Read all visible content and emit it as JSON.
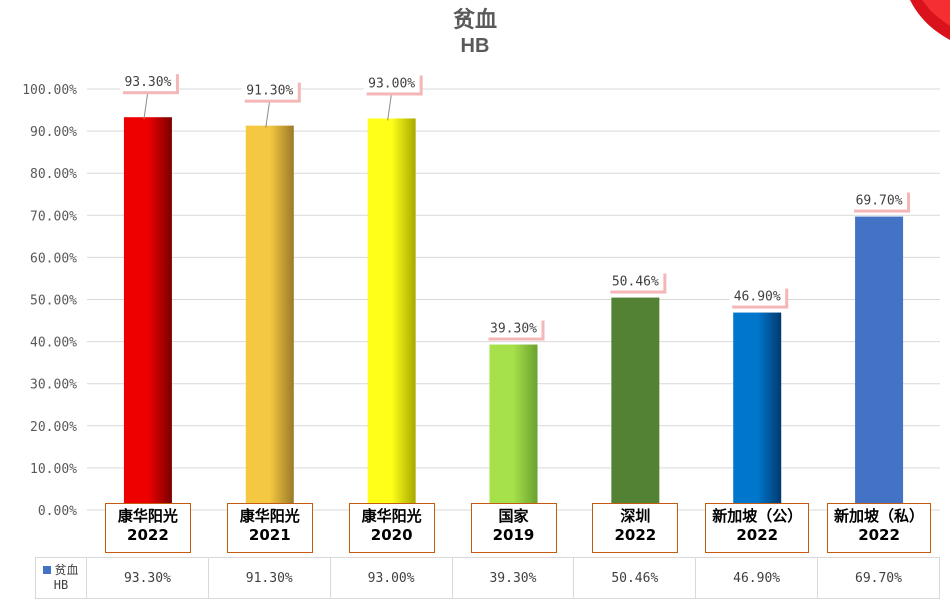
{
  "chart_data": {
    "type": "bar",
    "title": "贫血",
    "subtitle": "HB",
    "categories": [
      {
        "line1": "康华阳光",
        "line2": "2022"
      },
      {
        "line1": "康华阳光",
        "line2": "2021"
      },
      {
        "line1": "康华阳光",
        "line2": "2020"
      },
      {
        "line1": "国家",
        "line2": "2019"
      },
      {
        "line1": "深圳",
        "line2": "2022"
      },
      {
        "line1": "新加坡（公）",
        "line2": "2022"
      },
      {
        "line1": "新加坡（私）",
        "line2": "2022"
      }
    ],
    "series": [
      {
        "name": "贫血 HB",
        "values": [
          93.3,
          91.3,
          93.0,
          39.3,
          50.46,
          46.9,
          69.7
        ],
        "labels": [
          "93.30%",
          "91.30%",
          "93.00%",
          "39.30%",
          "50.46%",
          "46.90%",
          "69.70%"
        ]
      }
    ],
    "bar_colors": [
      [
        "#ee0000",
        "#7a0000"
      ],
      [
        "#f5c842",
        "#9a7a28"
      ],
      [
        "#ffff1a",
        "#a8a800"
      ],
      [
        "#a6e04a",
        "#6aa12e"
      ],
      [
        "#548235",
        "#548235"
      ],
      [
        "#0077cc",
        "#003a70"
      ],
      [
        "#4472c4",
        "#4472c4"
      ]
    ],
    "yticks": [
      "0.00%",
      "10.00%",
      "20.00%",
      "30.00%",
      "40.00%",
      "50.00%",
      "60.00%",
      "70.00%",
      "80.00%",
      "90.00%",
      "100.00%"
    ],
    "ylim": [
      0,
      100
    ],
    "grid": true,
    "data_table": true,
    "legend": {
      "series_line1": "贫血",
      "series_line2": "HB",
      "key_color": "#4472c4"
    }
  }
}
